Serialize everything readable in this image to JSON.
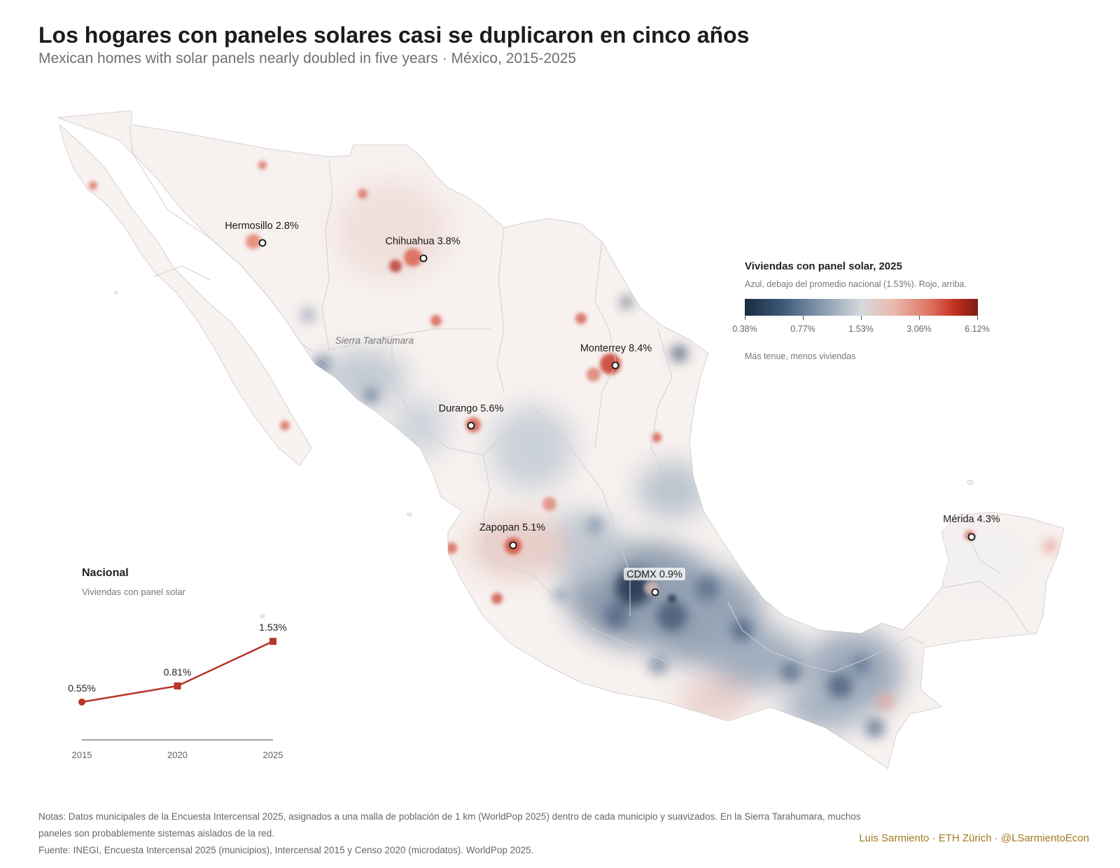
{
  "title": "Los hogares con paneles solares casi se duplicaron en cinco años",
  "subtitle": "Mexican homes with solar panels nearly doubled in five years · México, 2015-2025",
  "region_label": "Sierra Tarahumara",
  "cities": [
    {
      "name": "Hermosillo",
      "value": "2.8%"
    },
    {
      "name": "Chihuahua",
      "value": "3.8%"
    },
    {
      "name": "Monterrey",
      "value": "8.4%"
    },
    {
      "name": "Durango",
      "value": "5.6%"
    },
    {
      "name": "Zapopan",
      "value": "5.1%"
    },
    {
      "name": "CDMX",
      "value": "0.9%"
    },
    {
      "name": "Mérida",
      "value": "4.3%"
    }
  ],
  "legend": {
    "title": "Viviendas con panel solar, 2025",
    "subtitle": "Azul, debajo del promedio nacional (1.53%). Rojo, arriba.",
    "ticks": [
      "0.38%",
      "0.77%",
      "1.53%",
      "3.06%",
      "6.12%"
    ],
    "note": "Más tenue, menos viviendas",
    "colors": [
      "#1b2a40",
      "#3d5877",
      "#8b9db3",
      "#d6d9dc",
      "#e9b9ae",
      "#dd6f5e",
      "#c3311f",
      "#7c1c12"
    ]
  },
  "national": {
    "title": "Nacional",
    "subtitle": "Viviendas con panel solar"
  },
  "chart_data": {
    "type": "line",
    "title": "Nacional",
    "subtitle": "Viviendas con panel solar",
    "x": [
      "2015",
      "2020",
      "2025"
    ],
    "series": [
      {
        "values": [
          0.55,
          0.81,
          1.53
        ],
        "labels": [
          "0.55%",
          "0.81%",
          "1.53%"
        ],
        "color": "#b8362a"
      }
    ]
  },
  "notes": [
    "Notas: Datos municipales de la Encuesta Intercensal 2025, asignados a una malla de población de 1 km (WorldPop 2025) dentro de cada municipio y suavizados. En la Sierra Tarahumara, muchos paneles son probablemente sistemas aislados de la red.",
    "Fuente: INEGI, Encuesta Intercensal 2025 (municipios), Intercensal 2015 y Censo 2020 (microdatos). WorldPop 2025."
  ],
  "credit": "Luis Sarmiento · ETH Zürich · @LSarmientoEcon"
}
